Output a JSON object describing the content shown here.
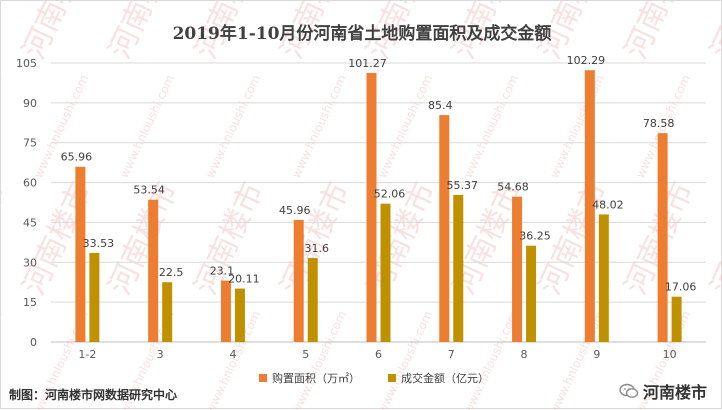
{
  "title": "2019年1-10月份河南省土地购置面积及成交金额",
  "source": "制图：河南楼市网数据研究中心",
  "brand_name": "河南楼市",
  "watermark_texts": [
    "河南楼市",
    "www.hnloushi.com"
  ],
  "colors": {
    "area": "#ED7D31",
    "amount": "#BF9000",
    "grid": "#D9D9D9",
    "axis_text": "#595959",
    "watermark": "#F2C9C9"
  },
  "chart_data": {
    "type": "bar",
    "categories": [
      "1-2",
      "3",
      "4",
      "5",
      "6",
      "7",
      "8",
      "9",
      "10"
    ],
    "series": [
      {
        "name": "购置面积（万㎡）",
        "values": [
          65.96,
          53.54,
          23.1,
          45.96,
          101.27,
          85.4,
          54.68,
          102.29,
          78.58
        ],
        "labels": [
          "65.96",
          "53.54",
          "23.1",
          "45.96",
          "101.27",
          "85.4",
          "54.68",
          "102.29",
          "78.58"
        ]
      },
      {
        "name": "成交金额（亿元）",
        "values": [
          33.53,
          22.5,
          20.11,
          31.6,
          52.06,
          55.37,
          36.25,
          48.02,
          17.06
        ],
        "labels": [
          "33.53",
          "22.5",
          "20.11",
          "31.6",
          "52.06",
          "55.37",
          "36.25",
          "48.02",
          "17.06"
        ]
      }
    ],
    "y_ticks": [
      "0",
      "15",
      "30",
      "45",
      "60",
      "75",
      "90",
      "105"
    ],
    "ylim": [
      0,
      105
    ],
    "grid": true,
    "legend_position": "bottom"
  }
}
